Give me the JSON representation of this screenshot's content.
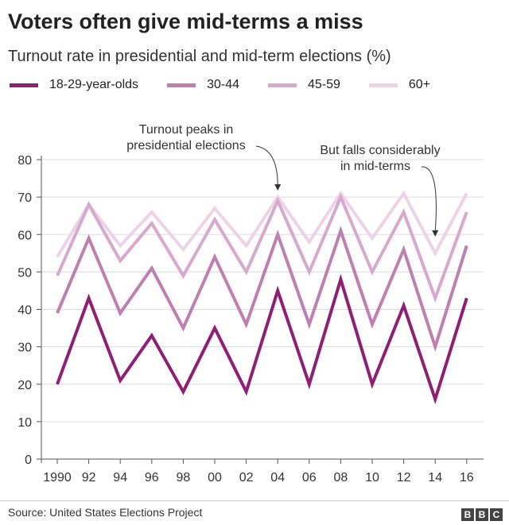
{
  "title": "Voters often give mid-terms a miss",
  "subtitle": "Turnout rate in presidential and mid-term elections (%)",
  "source": "Source: United States Elections Project",
  "logo": "BBC",
  "chart_data": {
    "type": "line",
    "categories": [
      "1990",
      "92",
      "94",
      "96",
      "98",
      "00",
      "02",
      "04",
      "06",
      "08",
      "10",
      "12",
      "14",
      "16"
    ],
    "ylim": [
      0,
      80
    ],
    "yticks": [
      0,
      10,
      20,
      30,
      40,
      50,
      60,
      70,
      80
    ],
    "grid": true,
    "legend_position": "top",
    "series": [
      {
        "name": "18-29-year-olds",
        "color": "#8e1f74",
        "values": [
          20,
          43,
          21,
          33,
          18,
          35,
          18,
          45,
          20,
          48,
          20,
          41,
          16,
          43
        ]
      },
      {
        "name": "30-44",
        "color": "#c07fb1",
        "values": [
          39,
          59,
          39,
          51,
          35,
          54,
          36,
          60,
          36,
          61,
          36,
          56,
          30,
          57
        ]
      },
      {
        "name": "45-59",
        "color": "#d8a9cf",
        "values": [
          49,
          68,
          53,
          63,
          49,
          64,
          50,
          69,
          50,
          70,
          50,
          66,
          43,
          66
        ]
      },
      {
        "name": "60+",
        "color": "#ecd3e6",
        "values": [
          54,
          68,
          57,
          66,
          56,
          67,
          57,
          70,
          58,
          71,
          59,
          71,
          55,
          71
        ]
      }
    ],
    "annotations": [
      {
        "text": [
          "Turnout peaks in",
          "presidential elections"
        ],
        "target": "04"
      },
      {
        "text": [
          "But falls considerably",
          "in mid-terms"
        ],
        "target": "14"
      }
    ]
  }
}
